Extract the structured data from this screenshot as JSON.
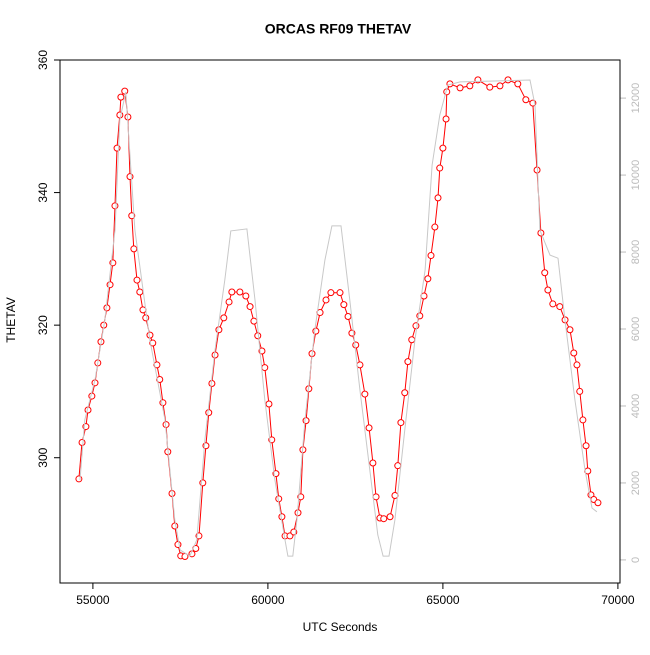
{
  "chart_data": {
    "type": "scatter",
    "title": "ORCAS RF09 THETAV",
    "xlabel": "UTC Seconds",
    "ylabel": "THETAV",
    "xlim": [
      54060,
      70060
    ],
    "xticks": [
      55000,
      60000,
      65000,
      70000
    ],
    "ylim": [
      281.1,
      360
    ],
    "yticks": [
      300,
      320,
      340,
      360
    ],
    "y2lim": [
      -600,
      12990
    ],
    "y2ticks": [
      0,
      2000,
      4000,
      6000,
      8000,
      10000,
      12000
    ],
    "series": [
      {
        "name": "THETAV",
        "color": "#ff0000",
        "x": [
          54600,
          54690,
          54800,
          54860,
          54970,
          55060,
          55140,
          55230,
          55310,
          55400,
          55490,
          55570,
          55630,
          55690,
          55770,
          55800,
          55910,
          56000,
          56060,
          56110,
          56170,
          56260,
          56340,
          56430,
          56510,
          56630,
          56710,
          56830,
          56910,
          57000,
          57090,
          57140,
          57260,
          57340,
          57430,
          57510,
          57630,
          57830,
          57940,
          58030,
          58140,
          58230,
          58310,
          58400,
          58490,
          58600,
          58740,
          58890,
          58970,
          59200,
          59370,
          59490,
          59600,
          59710,
          59830,
          59910,
          60030,
          60110,
          60230,
          60310,
          60400,
          60490,
          60630,
          60740,
          60860,
          60940,
          61000,
          61090,
          61170,
          61260,
          61370,
          61490,
          61660,
          61800,
          62060,
          62170,
          62290,
          62400,
          62510,
          62630,
          62770,
          62890,
          63000,
          63090,
          63200,
          63310,
          63490,
          63630,
          63710,
          63800,
          63910,
          64000,
          64110,
          64230,
          64340,
          64460,
          64570,
          64660,
          64770,
          64860,
          64910,
          65000,
          65090,
          65110,
          65200,
          65490,
          65770,
          66000,
          66340,
          66630,
          66860,
          67140,
          67370,
          67570,
          67690,
          67800,
          67910,
          68000,
          68140,
          68340,
          68490,
          68630,
          68740,
          68830,
          68910,
          69000,
          69090,
          69140,
          69230,
          69310,
          69430
        ],
        "values": [
          296.8,
          302.3,
          304.7,
          307.2,
          309.3,
          311.3,
          314.3,
          317.5,
          320.0,
          322.6,
          326.1,
          329.4,
          338.0,
          346.7,
          351.7,
          354.4,
          355.3,
          351.4,
          342.4,
          336.5,
          331.5,
          326.8,
          325.0,
          322.3,
          321.1,
          318.5,
          317.3,
          314.0,
          311.8,
          308.3,
          305.0,
          300.9,
          294.6,
          289.7,
          286.9,
          285.2,
          285.1,
          285.5,
          286.3,
          288.2,
          296.2,
          301.8,
          306.8,
          311.2,
          315.5,
          319.3,
          321.1,
          323.5,
          325.0,
          325.0,
          324.4,
          322.8,
          320.6,
          318.4,
          316.1,
          313.6,
          308.1,
          302.7,
          297.6,
          293.8,
          291.1,
          288.2,
          288.2,
          288.8,
          291.7,
          294.1,
          301.2,
          305.6,
          310.4,
          315.7,
          319.1,
          321.9,
          323.8,
          324.9,
          324.9,
          323.1,
          321.3,
          318.8,
          317.0,
          314.0,
          309.6,
          304.5,
          299.2,
          294.1,
          290.9,
          290.8,
          291.1,
          294.3,
          298.8,
          305.3,
          309.8,
          314.5,
          317.8,
          319.9,
          321.4,
          324.4,
          327.0,
          330.5,
          334.8,
          339.2,
          343.7,
          346.7,
          351.1,
          355.2,
          356.4,
          355.8,
          356.1,
          357.0,
          355.9,
          356.1,
          357.0,
          356.4,
          354.0,
          353.5,
          343.4,
          333.9,
          327.9,
          325.3,
          323.2,
          322.8,
          320.8,
          319.3,
          315.8,
          314.0,
          310.0,
          305.7,
          301.8,
          298.0,
          294.4,
          293.7,
          293.2
        ]
      },
      {
        "color": "#c8c8c8",
        "axis": "y2",
        "x": [
          54630,
          54770,
          55060,
          55340,
          55630,
          55770,
          55940,
          56200,
          56630,
          57060,
          57340,
          57490,
          57770,
          57970,
          58200,
          58490,
          58770,
          58940,
          59400,
          59630,
          59910,
          60200,
          60490,
          60570,
          60710,
          60830,
          61060,
          61340,
          61630,
          61830,
          62090,
          62340,
          62630,
          62910,
          63140,
          63290,
          63460,
          63630,
          63910,
          64200,
          64490,
          64690,
          64910,
          65140,
          65490,
          67490,
          67630,
          67770,
          68060,
          68290,
          68490,
          68770,
          69060,
          69260,
          69400
        ],
        "values": [
          2080,
          3640,
          4680,
          6230,
          8570,
          11430,
          12160,
          8570,
          5710,
          3640,
          1040,
          260,
          100,
          520,
          3120,
          5450,
          7270,
          8550,
          8600,
          6750,
          4160,
          2080,
          520,
          100,
          100,
          1040,
          3640,
          5970,
          7790,
          8680,
          8680,
          6750,
          4420,
          2340,
          650,
          100,
          100,
          1040,
          3380,
          5710,
          7530,
          10260,
          11560,
          12340,
          12420,
          12470,
          11820,
          8570,
          7920,
          7840,
          6230,
          4160,
          2340,
          1350,
          1250
        ]
      }
    ]
  }
}
